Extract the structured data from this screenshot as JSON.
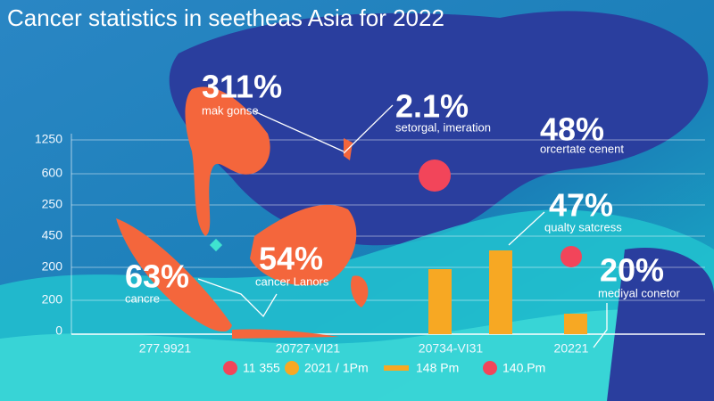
{
  "title": "Cancer statistics in seetheas Asia for 2022",
  "y_axis_labels": [
    1250,
    600,
    250,
    450,
    200,
    200,
    0
  ],
  "x_axis_labels": [
    "277.9921",
    "20727·VI21",
    "20734-VI31",
    "20221"
  ],
  "callouts": [
    {
      "value": "311%",
      "label": "mak gonse"
    },
    {
      "value": "2.1%",
      "label": "setorgal, imeration"
    },
    {
      "value": "48%",
      "label": "orcertate cenent"
    },
    {
      "value": "47%",
      "label": "qualty satcress"
    },
    {
      "value": "20%",
      "label": "mediyal conetor"
    },
    {
      "value": "63%",
      "label": "cancre"
    },
    {
      "value": "54%",
      "label": "cancer Lanors"
    }
  ],
  "legend": [
    "11 355",
    "2021 / 1Pm",
    "148 Pm",
    "140.Pm"
  ]
}
